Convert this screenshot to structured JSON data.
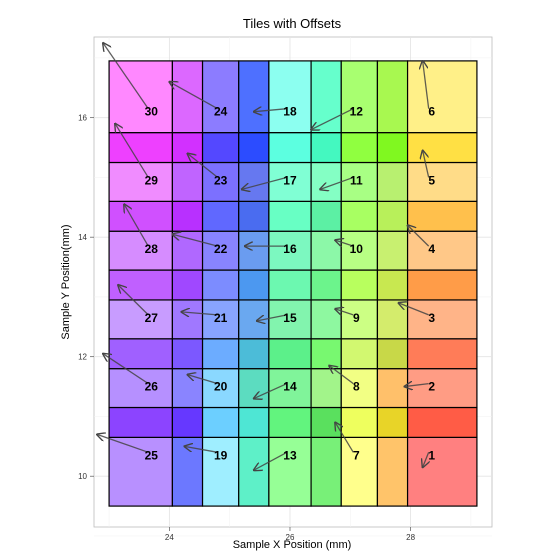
{
  "chart_data": {
    "type": "heatmap",
    "title": "Tiles with Offsets",
    "xlabel": "Sample X Position (mm)",
    "ylabel": "Sample Y Position(mm)",
    "xlim": [
      22.75,
      29.35
    ],
    "ylim": [
      9.15,
      17.35
    ],
    "x_ticks": [
      24,
      26,
      28
    ],
    "y_ticks": [
      10,
      12,
      14,
      16
    ],
    "x_tick_labels": [
      "24",
      "26",
      "28"
    ],
    "y_tick_labels": [
      "10",
      "12",
      "14",
      "16"
    ],
    "grid": true,
    "columns": [
      {
        "x0": 23.0,
        "x1": 24.05
      },
      {
        "x0": 24.05,
        "x1": 24.55
      },
      {
        "x0": 24.55,
        "x1": 25.15
      },
      {
        "x0": 25.15,
        "x1": 25.65
      },
      {
        "x0": 25.65,
        "x1": 26.35
      },
      {
        "x0": 26.35,
        "x1": 26.85
      },
      {
        "x0": 26.85,
        "x1": 27.45
      },
      {
        "x0": 27.45,
        "x1": 27.95
      },
      {
        "x0": 27.95,
        "x1": 29.1
      }
    ],
    "rows": [
      {
        "y0": 9.5,
        "y1": 10.65
      },
      {
        "y0": 10.65,
        "y1": 11.15
      },
      {
        "y0": 11.15,
        "y1": 11.8
      },
      {
        "y0": 11.8,
        "y1": 12.3
      },
      {
        "y0": 12.3,
        "y1": 12.95
      },
      {
        "y0": 12.95,
        "y1": 13.45
      },
      {
        "y0": 13.45,
        "y1": 14.1
      },
      {
        "y0": 14.1,
        "y1": 14.6
      },
      {
        "y0": 14.6,
        "y1": 15.25
      },
      {
        "y0": 15.25,
        "y1": 15.75
      },
      {
        "y0": 15.75,
        "y1": 16.95
      }
    ],
    "tile_colors": [
      [
        "#b890ff",
        "#6c78ff",
        "#9feeff",
        "#5ef0c8",
        "#96ff96",
        "#78f078",
        "#ffff8c",
        "#ffc46a",
        "#ff8080"
      ],
      [
        "#8c44ff",
        "#6638ff",
        "#6ccfff",
        "#4ee6d4",
        "#62f47e",
        "#5ae05e",
        "#eeff5e",
        "#e8d428",
        "#ff5c46"
      ],
      [
        "#b690ff",
        "#8a84ff",
        "#8ad8ff",
        "#5cdcc0",
        "#80f49a",
        "#a2f48a",
        "#f2ff84",
        "#ffc06a",
        "#ff9c84"
      ],
      [
        "#a060ff",
        "#7c58ff",
        "#6cacff",
        "#4cbcd8",
        "#5cf08a",
        "#78f870",
        "#d2f870",
        "#c8d848",
        "#ff7c58"
      ],
      [
        "#c89cff",
        "#a078ff",
        "#88a4ff",
        "#6aa8f0",
        "#82f4ae",
        "#8ef8a0",
        "#ccff84",
        "#d4ec6c",
        "#ffb488"
      ],
      [
        "#c060ff",
        "#a048ff",
        "#7c8cff",
        "#4c98f0",
        "#6cf8b0",
        "#6cf48c",
        "#b8ff5e",
        "#c8e850",
        "#ff9c48"
      ],
      [
        "#d68cff",
        "#b068ff",
        "#8884ff",
        "#6a9cf0",
        "#7cf8c0",
        "#8cf8a8",
        "#b8ff84",
        "#c8f070",
        "#ffc888"
      ],
      [
        "#d050ff",
        "#b830ff",
        "#6068ff",
        "#4a6cf0",
        "#68ffc4",
        "#5cf0a4",
        "#a8ff62",
        "#b8f05a",
        "#ffc04c"
      ],
      [
        "#f08cff",
        "#c064ff",
        "#7c70ff",
        "#6678f0",
        "#80ffd4",
        "#84ffc4",
        "#a8ff84",
        "#b8f070",
        "#ffdc88"
      ],
      [
        "#ee40ff",
        "#d230ff",
        "#5448ff",
        "#2c4cff",
        "#5cffe0",
        "#44f8c0",
        "#90ff40",
        "#80f820",
        "#ffe044"
      ],
      [
        "#ff88ff",
        "#dc68ff",
        "#8c7cff",
        "#4e70ff",
        "#8cfff0",
        "#66ffcc",
        "#a8ff70",
        "#a8f850",
        "#fff088"
      ]
    ],
    "tiles": [
      {
        "label": "1",
        "x": 28.35,
        "y": 10.35,
        "dx": -0.15,
        "dy": -0.2
      },
      {
        "label": "2",
        "x": 28.35,
        "y": 11.5,
        "dx": -0.45,
        "dy": 0.0
      },
      {
        "label": "3",
        "x": 28.35,
        "y": 12.65,
        "dx": -0.55,
        "dy": 0.25
      },
      {
        "label": "4",
        "x": 28.35,
        "y": 13.8,
        "dx": -0.4,
        "dy": 0.4
      },
      {
        "label": "5",
        "x": 28.35,
        "y": 14.95,
        "dx": -0.15,
        "dy": 0.5
      },
      {
        "label": "6",
        "x": 28.35,
        "y": 16.1,
        "dx": -0.15,
        "dy": 0.85
      },
      {
        "label": "7",
        "x": 27.1,
        "y": 10.35,
        "dx": -0.35,
        "dy": 0.55
      },
      {
        "label": "8",
        "x": 27.1,
        "y": 11.5,
        "dx": -0.45,
        "dy": 0.35
      },
      {
        "label": "9",
        "x": 27.1,
        "y": 12.65,
        "dx": -0.35,
        "dy": 0.15
      },
      {
        "label": "10",
        "x": 27.1,
        "y": 13.8,
        "dx": -0.35,
        "dy": 0.15
      },
      {
        "label": "11",
        "x": 27.1,
        "y": 14.95,
        "dx": -0.6,
        "dy": -0.15
      },
      {
        "label": "12",
        "x": 27.1,
        "y": 16.1,
        "dx": -0.75,
        "dy": -0.3
      },
      {
        "label": "13",
        "x": 26.0,
        "y": 10.35,
        "dx": -0.6,
        "dy": -0.25
      },
      {
        "label": "14",
        "x": 26.0,
        "y": 11.5,
        "dx": -0.6,
        "dy": -0.2
      },
      {
        "label": "15",
        "x": 26.0,
        "y": 12.65,
        "dx": -0.55,
        "dy": -0.05
      },
      {
        "label": "16",
        "x": 26.0,
        "y": 13.8,
        "dx": -0.75,
        "dy": 0.05
      },
      {
        "label": "17",
        "x": 26.0,
        "y": 14.95,
        "dx": -0.8,
        "dy": -0.15
      },
      {
        "label": "18",
        "x": 26.0,
        "y": 16.1,
        "dx": -0.6,
        "dy": 0.0
      },
      {
        "label": "19",
        "x": 24.85,
        "y": 10.35,
        "dx": -0.6,
        "dy": 0.15
      },
      {
        "label": "20",
        "x": 24.85,
        "y": 11.5,
        "dx": -0.55,
        "dy": 0.2
      },
      {
        "label": "21",
        "x": 24.85,
        "y": 12.65,
        "dx": -0.65,
        "dy": 0.1
      },
      {
        "label": "22",
        "x": 24.85,
        "y": 13.8,
        "dx": -0.8,
        "dy": 0.25
      },
      {
        "label": "23",
        "x": 24.85,
        "y": 14.95,
        "dx": -0.55,
        "dy": 0.45
      },
      {
        "label": "24",
        "x": 24.85,
        "y": 16.1,
        "dx": -0.85,
        "dy": 0.5
      },
      {
        "label": "25",
        "x": 23.7,
        "y": 10.35,
        "dx": -0.9,
        "dy": 0.35
      },
      {
        "label": "26",
        "x": 23.7,
        "y": 11.5,
        "dx": -0.8,
        "dy": 0.55
      },
      {
        "label": "27",
        "x": 23.7,
        "y": 12.65,
        "dx": -0.55,
        "dy": 0.55
      },
      {
        "label": "28",
        "x": 23.7,
        "y": 13.8,
        "dx": -0.45,
        "dy": 0.75
      },
      {
        "label": "29",
        "x": 23.7,
        "y": 14.95,
        "dx": -0.6,
        "dy": 0.95
      },
      {
        "label": "30",
        "x": 23.7,
        "y": 16.1,
        "dx": -0.8,
        "dy": 1.15
      }
    ]
  }
}
